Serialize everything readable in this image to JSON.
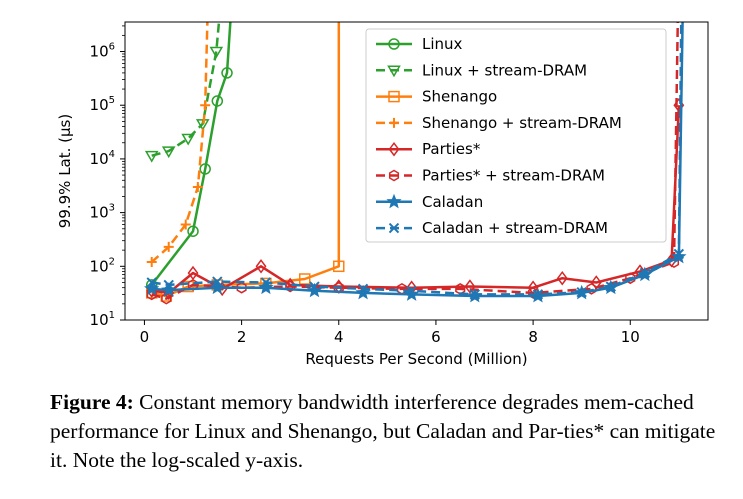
{
  "chart_data": {
    "type": "line",
    "xlabel": "Requests Per Second (Million)",
    "ylabel": "99.9% Lat. (μs)",
    "xlim": [
      -0.4,
      11.6
    ],
    "ylim_log10": [
      1,
      6.55
    ],
    "yscale": "log",
    "grid": false,
    "legend_position": "top-right",
    "x_ticks": [
      {
        "value": 0,
        "label": "0"
      },
      {
        "value": 2,
        "label": "2"
      },
      {
        "value": 4,
        "label": "4"
      },
      {
        "value": 6,
        "label": "6"
      },
      {
        "value": 8,
        "label": "8"
      },
      {
        "value": 10,
        "label": "10"
      }
    ],
    "y_ticks": [
      {
        "exp": 1,
        "base": "10",
        "sup": "1"
      },
      {
        "exp": 2,
        "base": "10",
        "sup": "2"
      },
      {
        "exp": 3,
        "base": "10",
        "sup": "3"
      },
      {
        "exp": 4,
        "base": "10",
        "sup": "4"
      },
      {
        "exp": 5,
        "base": "10",
        "sup": "5"
      },
      {
        "exp": 6,
        "base": "10",
        "sup": "6"
      }
    ],
    "series": [
      {
        "name": "Linux",
        "color": "#2ca02c",
        "dash": false,
        "marker": "circle",
        "points": [
          [
            0.15,
            45
          ],
          [
            1.0,
            450
          ],
          [
            1.25,
            6500
          ],
          [
            1.5,
            120000
          ],
          [
            1.7,
            400000
          ],
          [
            1.78,
            5000000
          ]
        ]
      },
      {
        "name": "Linux + stream-DRAM",
        "color": "#2ca02c",
        "dash": true,
        "marker": "triangle-down",
        "points": [
          [
            0.15,
            11500
          ],
          [
            0.5,
            14000
          ],
          [
            0.9,
            24000
          ],
          [
            1.2,
            45000
          ],
          [
            1.48,
            1000000
          ],
          [
            1.55,
            5000000
          ]
        ]
      },
      {
        "name": "Shenango",
        "color": "#ff7f0e",
        "dash": false,
        "marker": "square",
        "points": [
          [
            0.15,
            32
          ],
          [
            0.45,
            28
          ],
          [
            0.9,
            42
          ],
          [
            1.5,
            45
          ],
          [
            2.5,
            48
          ],
          [
            3.3,
            58
          ],
          [
            4.0,
            100
          ],
          [
            4.0,
            5000000
          ]
        ]
      },
      {
        "name": "Shenango + stream-DRAM",
        "color": "#ff7f0e",
        "dash": true,
        "marker": "plus",
        "points": [
          [
            0.15,
            120
          ],
          [
            0.5,
            230
          ],
          [
            0.85,
            600
          ],
          [
            1.1,
            3000
          ],
          [
            1.25,
            100000
          ],
          [
            1.3,
            5000000
          ]
        ]
      },
      {
        "name": "Parties*",
        "color": "#d62728",
        "dash": false,
        "marker": "diamond",
        "points": [
          [
            0.15,
            35
          ],
          [
            0.5,
            32
          ],
          [
            1.0,
            75
          ],
          [
            1.6,
            38
          ],
          [
            2.4,
            100
          ],
          [
            3.0,
            45
          ],
          [
            4.0,
            42
          ],
          [
            5.5,
            40
          ],
          [
            6.7,
            42
          ],
          [
            8.0,
            40
          ],
          [
            8.6,
            60
          ],
          [
            9.3,
            50
          ],
          [
            10.2,
            80
          ],
          [
            10.85,
            130
          ],
          [
            11.0,
            100000
          ]
        ]
      },
      {
        "name": "Parties* + stream-DRAM",
        "color": "#d62728",
        "dash": true,
        "marker": "hexagon",
        "points": [
          [
            0.15,
            30
          ],
          [
            0.45,
            25
          ],
          [
            1.0,
            45
          ],
          [
            2.0,
            40
          ],
          [
            3.0,
            42
          ],
          [
            4.0,
            40
          ],
          [
            5.3,
            38
          ],
          [
            6.5,
            38
          ],
          [
            8.0,
            32
          ],
          [
            9.2,
            38
          ],
          [
            10.0,
            60
          ],
          [
            10.9,
            120
          ],
          [
            10.98,
            5000000
          ]
        ]
      },
      {
        "name": "Caladan",
        "color": "#1f77b4",
        "dash": false,
        "marker": "star",
        "points": [
          [
            0.15,
            38
          ],
          [
            0.5,
            36
          ],
          [
            1.5,
            40
          ],
          [
            2.5,
            40
          ],
          [
            3.5,
            35
          ],
          [
            4.5,
            32
          ],
          [
            5.5,
            30
          ],
          [
            6.8,
            28
          ],
          [
            8.1,
            28
          ],
          [
            9.0,
            32
          ],
          [
            9.6,
            40
          ],
          [
            10.3,
            70
          ],
          [
            11.0,
            150
          ],
          [
            11.08,
            5000000
          ]
        ]
      },
      {
        "name": "Caladan + stream-DRAM",
        "color": "#1f77b4",
        "dash": true,
        "marker": "x",
        "points": [
          [
            0.15,
            50
          ],
          [
            0.5,
            45
          ],
          [
            1.5,
            52
          ],
          [
            2.5,
            50
          ],
          [
            3.5,
            42
          ],
          [
            4.5,
            38
          ],
          [
            5.5,
            35
          ],
          [
            6.8,
            30
          ],
          [
            8.1,
            30
          ],
          [
            9.0,
            33
          ],
          [
            9.6,
            42
          ],
          [
            10.3,
            75
          ],
          [
            11.0,
            170
          ],
          [
            11.05,
            5000000
          ]
        ]
      }
    ]
  },
  "caption": {
    "label": "Figure 4:",
    "text": "Constant memory bandwidth interference degrades mem-cached performance for Linux and Shenango, but Caladan and Par-ties* can mitigate it. Note the log-scaled y-axis."
  }
}
